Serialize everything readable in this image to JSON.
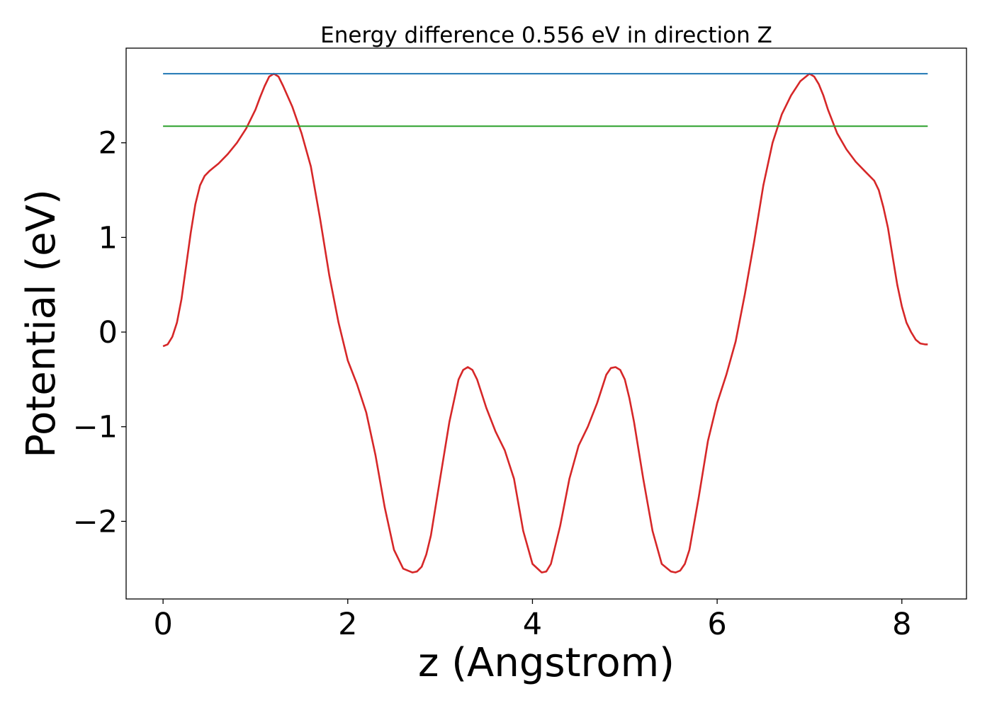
{
  "chart_data": {
    "type": "line",
    "title": "Energy difference 0.556 eV in direction Z",
    "xlabel": "z (Angstrom)",
    "ylabel": "Potential (eV)",
    "xlim": [
      -0.4,
      8.7
    ],
    "ylim": [
      -2.82,
      3.0
    ],
    "xticks": [
      0,
      2,
      4,
      6,
      8
    ],
    "xtick_labels": [
      "0",
      "2",
      "4",
      "6",
      "8"
    ],
    "yticks": [
      -2,
      -1,
      0,
      1,
      2
    ],
    "ytick_labels": [
      "−2",
      "−1",
      "0",
      "1",
      "2"
    ],
    "grid": false,
    "legend": "none",
    "series": [
      {
        "color": "#d62728",
        "x": [
          0.0,
          0.05,
          0.1,
          0.15,
          0.2,
          0.25,
          0.3,
          0.35,
          0.4,
          0.45,
          0.5,
          0.55,
          0.6,
          0.7,
          0.8,
          0.9,
          1.0,
          1.05,
          1.1,
          1.15,
          1.2,
          1.25,
          1.3,
          1.4,
          1.5,
          1.6,
          1.7,
          1.8,
          1.9,
          2.0,
          2.1,
          2.2,
          2.3,
          2.4,
          2.5,
          2.6,
          2.7,
          2.75,
          2.8,
          2.85,
          2.9,
          3.0,
          3.1,
          3.2,
          3.25,
          3.3,
          3.35,
          3.4,
          3.45,
          3.5,
          3.6,
          3.7,
          3.8,
          3.9,
          4.0,
          4.1,
          4.15,
          4.2,
          4.3,
          4.4,
          4.5,
          4.6,
          4.7,
          4.8,
          4.85,
          4.9,
          4.95,
          5.0,
          5.05,
          5.1,
          5.2,
          5.3,
          5.4,
          5.5,
          5.55,
          5.6,
          5.65,
          5.7,
          5.8,
          5.9,
          6.0,
          6.1,
          6.2,
          6.3,
          6.4,
          6.5,
          6.6,
          6.7,
          6.8,
          6.9,
          7.0,
          7.05,
          7.1,
          7.15,
          7.2,
          7.3,
          7.4,
          7.5,
          7.6,
          7.7,
          7.75,
          7.8,
          7.85,
          7.9,
          7.95,
          8.0,
          8.05,
          8.1,
          8.15,
          8.2,
          8.25,
          8.28
        ],
        "values": [
          -0.15,
          -0.13,
          -0.05,
          0.1,
          0.35,
          0.7,
          1.05,
          1.35,
          1.55,
          1.65,
          1.7,
          1.74,
          1.78,
          1.88,
          2.0,
          2.15,
          2.35,
          2.48,
          2.6,
          2.7,
          2.73,
          2.7,
          2.6,
          2.38,
          2.1,
          1.75,
          1.2,
          0.6,
          0.1,
          -0.3,
          -0.55,
          -0.85,
          -1.3,
          -1.85,
          -2.3,
          -2.5,
          -2.54,
          -2.53,
          -2.48,
          -2.35,
          -2.15,
          -1.55,
          -0.95,
          -0.5,
          -0.4,
          -0.37,
          -0.4,
          -0.5,
          -0.65,
          -0.8,
          -1.05,
          -1.25,
          -1.55,
          -2.1,
          -2.45,
          -2.54,
          -2.53,
          -2.45,
          -2.05,
          -1.55,
          -1.2,
          -1.0,
          -0.75,
          -0.45,
          -0.38,
          -0.37,
          -0.4,
          -0.5,
          -0.7,
          -0.95,
          -1.55,
          -2.1,
          -2.45,
          -2.53,
          -2.54,
          -2.52,
          -2.45,
          -2.3,
          -1.75,
          -1.15,
          -0.75,
          -0.45,
          -0.1,
          0.4,
          0.95,
          1.55,
          2.0,
          2.3,
          2.5,
          2.65,
          2.73,
          2.7,
          2.62,
          2.5,
          2.35,
          2.1,
          1.93,
          1.8,
          1.7,
          1.6,
          1.5,
          1.32,
          1.1,
          0.8,
          0.5,
          0.27,
          0.1,
          0.0,
          -0.08,
          -0.12,
          -0.13,
          -0.13
        ]
      },
      {
        "color": "#1f77b4",
        "x": [
          0.0,
          8.28
        ],
        "values": [
          2.73,
          2.73
        ]
      },
      {
        "color": "#2ca02c",
        "x": [
          0.0,
          8.28
        ],
        "values": [
          2.175,
          2.175
        ]
      }
    ]
  }
}
